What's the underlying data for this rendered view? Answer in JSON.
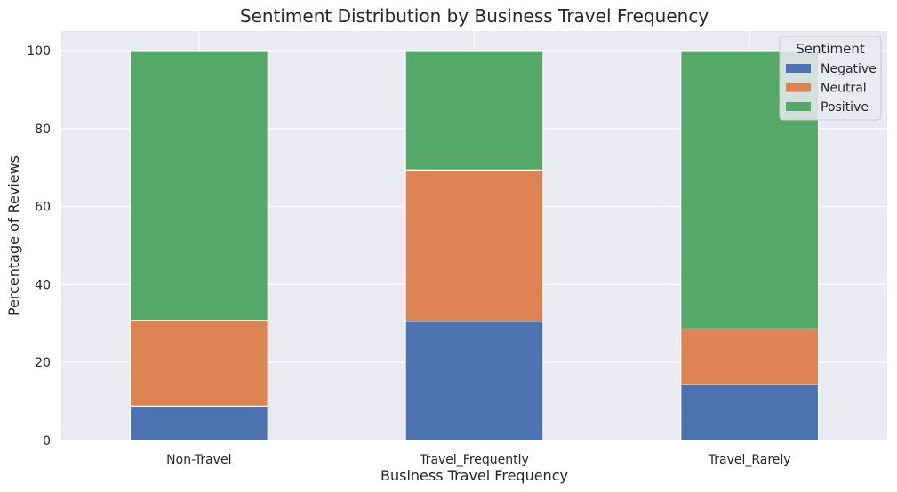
{
  "chart_data": {
    "type": "bar",
    "stacked": true,
    "title": "Sentiment Distribution by Business Travel Frequency",
    "xlabel": "Business Travel Frequency",
    "ylabel": "Percentage of Reviews",
    "categories": [
      "Non-Travel",
      "Travel_Frequently",
      "Travel_Rarely"
    ],
    "series": [
      {
        "name": "Negative",
        "values": [
          8.8,
          30.6,
          14.3
        ],
        "color": "#4c72b0"
      },
      {
        "name": "Neutral",
        "values": [
          22.0,
          38.8,
          14.3
        ],
        "color": "#dd8452"
      },
      {
        "name": "Positive",
        "values": [
          69.2,
          30.6,
          71.4
        ],
        "color": "#55a868"
      }
    ],
    "ylim": [
      0,
      105
    ],
    "yticks": [
      "0",
      "20",
      "40",
      "60",
      "80",
      "100"
    ],
    "grid": true,
    "legend": {
      "title": "Sentiment",
      "position": "top-right"
    },
    "background": "#eaeaf2"
  }
}
